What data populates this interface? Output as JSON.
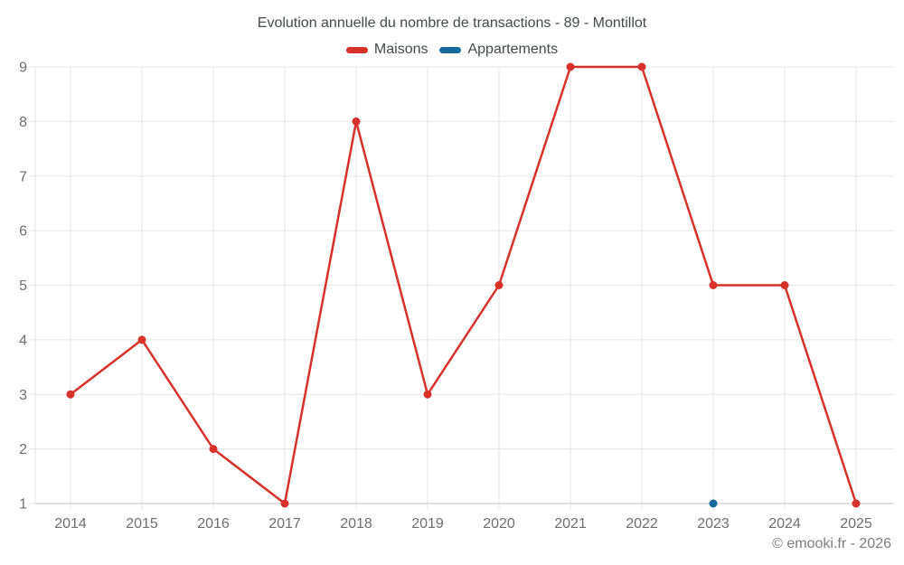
{
  "title": "Evolution annuelle du nombre de transactions - 89 - Montillot",
  "footer": "© emooki.fr - 2026",
  "colors": {
    "maisons": "#d8312b",
    "appartements": "#16699c",
    "grid": "#e6e6e6",
    "axis_baseline": "#c6c6c6",
    "axis_text": "#6e6e6e",
    "title_text": "#45494e",
    "footer_text": "#7d7d7d",
    "background": "#ffffff"
  },
  "chart_data": {
    "type": "line",
    "title": "Evolution annuelle du nombre de transactions - 89 - Montillot",
    "x": [
      2014,
      2015,
      2016,
      2017,
      2018,
      2019,
      2020,
      2021,
      2022,
      2023,
      2024,
      2025
    ],
    "series": [
      {
        "name": "Maisons",
        "color": "#d8312b",
        "values": [
          3,
          4,
          2,
          1,
          8,
          3,
          5,
          9,
          9,
          5,
          5,
          1
        ]
      },
      {
        "name": "Appartements",
        "color": "#16699c",
        "values": [
          null,
          null,
          null,
          null,
          null,
          null,
          null,
          null,
          null,
          1,
          null,
          null
        ]
      }
    ],
    "xlabel": "",
    "ylabel": "",
    "ylim": [
      1,
      9
    ],
    "yticks": [
      1,
      2,
      3,
      4,
      5,
      6,
      7,
      8,
      9
    ],
    "grid": true,
    "legend_position": "top"
  }
}
